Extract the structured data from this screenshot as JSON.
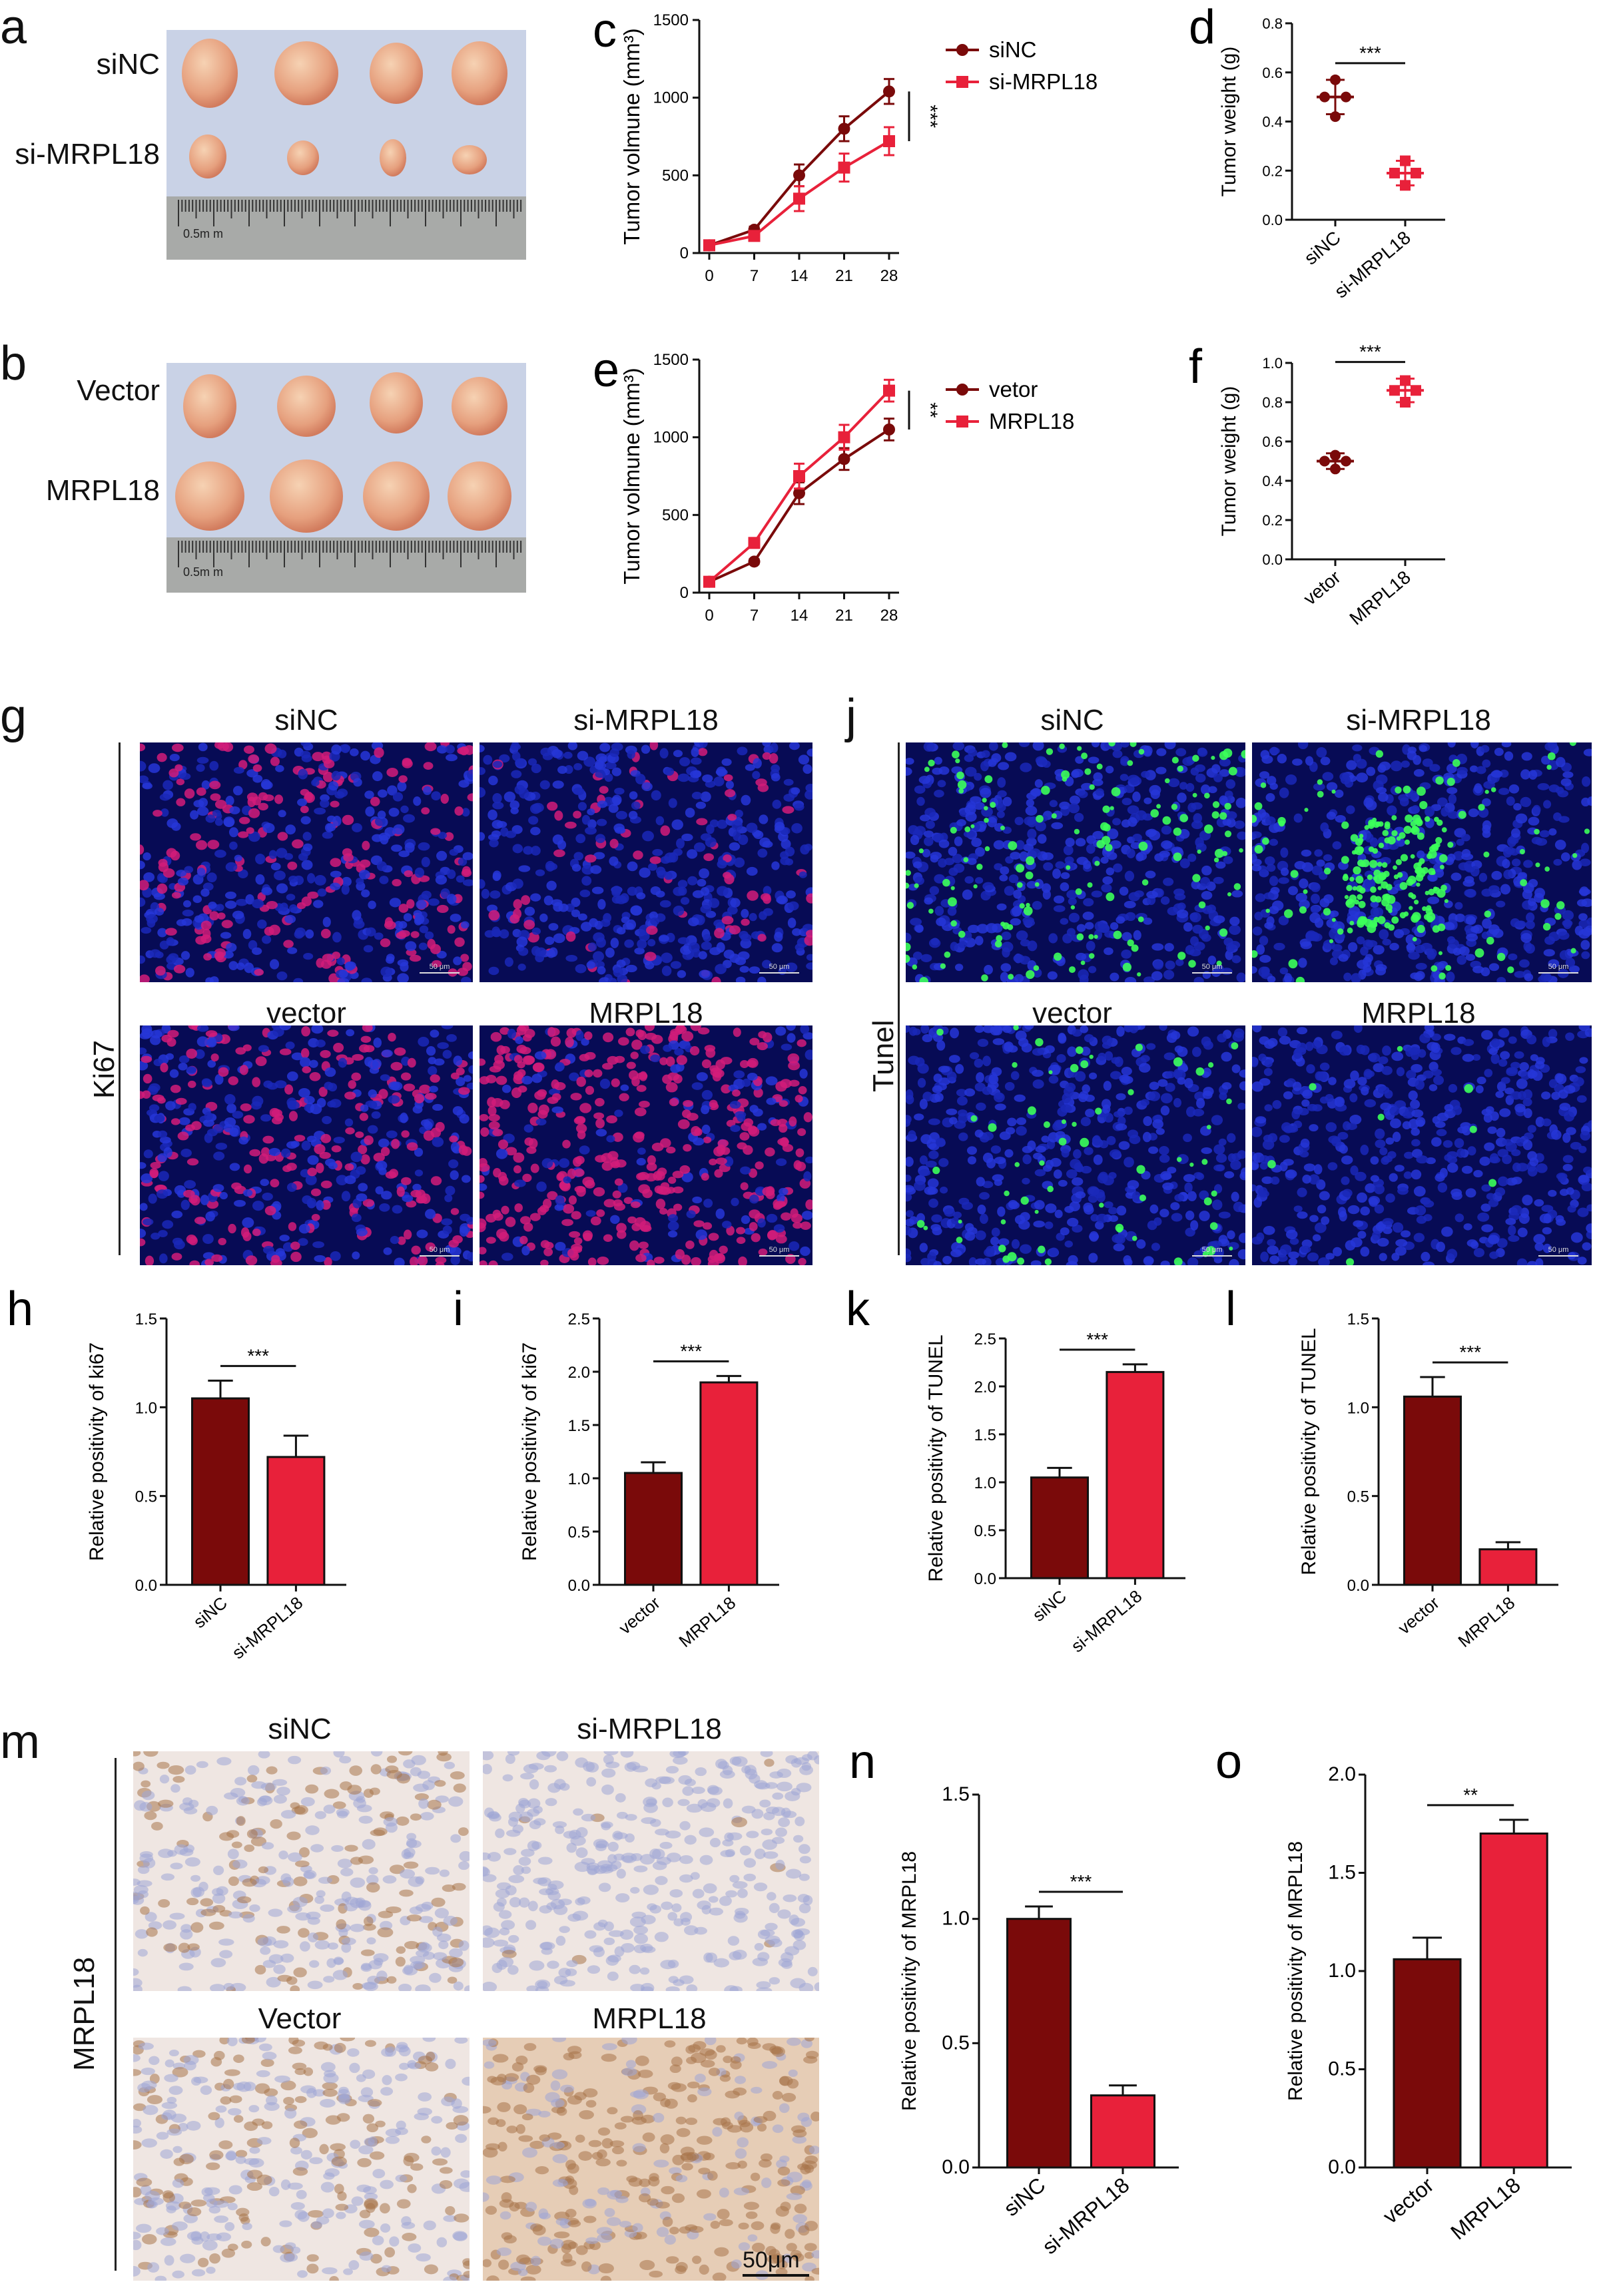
{
  "colors": {
    "dark_red": "#7a0a0a",
    "bright_red": "#e8213a",
    "axis": "#111111"
  },
  "panels": {
    "a": {
      "letter": "a",
      "row_labels": [
        "siNC",
        "si-MRPL18"
      ],
      "scale_text": "0.5m m"
    },
    "b": {
      "letter": "b",
      "row_labels": [
        "Vector",
        "MRPL18"
      ],
      "scale_text": "0.5m m"
    },
    "g": {
      "letter": "g",
      "side_label": "Ki67",
      "col_labels": [
        "siNC",
        "si-MRPL18"
      ],
      "row2_labels": [
        "vector",
        "MRPL18"
      ],
      "scale_text": "50 μm"
    },
    "j": {
      "letter": "j",
      "side_label": "Tunel",
      "col_labels": [
        "siNC",
        "si-MRPL18"
      ],
      "row2_labels": [
        "vector",
        "MRPL18"
      ],
      "scale_text": "50 μm"
    },
    "m": {
      "letter": "m",
      "side_label": "MRPL18",
      "col_labels": [
        "siNC",
        "si-MRPL18"
      ],
      "row2_labels": [
        "Vector",
        "MRPL18"
      ],
      "scale_text": "50μm"
    }
  },
  "chart_data": [
    {
      "id": "c",
      "letter": "c",
      "type": "line",
      "x": [
        0,
        7,
        14,
        21,
        28
      ],
      "ylabel": "Tumor volmune (mm³)",
      "ylim": [
        0,
        1500
      ],
      "yticks": [
        0,
        500,
        1000,
        1500
      ],
      "significance": "***",
      "legend": "top-right",
      "series": [
        {
          "name": "siNC",
          "values": [
            50,
            150,
            500,
            800,
            1040
          ],
          "err": [
            10,
            20,
            70,
            80,
            80
          ],
          "color": "#7a0a0a",
          "marker": "circle"
        },
        {
          "name": "si-MRPL18",
          "values": [
            50,
            110,
            350,
            550,
            720
          ],
          "err": [
            10,
            15,
            80,
            90,
            90
          ],
          "color": "#e8213a",
          "marker": "square"
        }
      ]
    },
    {
      "id": "e",
      "letter": "e",
      "type": "line",
      "x": [
        0,
        7,
        14,
        21,
        28
      ],
      "ylabel": "Tumor volmune (mm³)",
      "ylim": [
        0,
        1500
      ],
      "yticks": [
        0,
        500,
        1000,
        1500
      ],
      "significance": "**",
      "legend": "top-right",
      "series": [
        {
          "name": "vetor",
          "values": [
            70,
            200,
            640,
            860,
            1050
          ],
          "err": [
            10,
            15,
            70,
            70,
            70
          ],
          "color": "#7a0a0a",
          "marker": "circle"
        },
        {
          "name": "MRPL18",
          "values": [
            70,
            320,
            750,
            1000,
            1300
          ],
          "err": [
            10,
            15,
            80,
            80,
            70
          ],
          "color": "#e8213a",
          "marker": "square"
        }
      ]
    },
    {
      "id": "d",
      "letter": "d",
      "type": "scatter",
      "categories": [
        "siNC",
        "si-MRPL18"
      ],
      "ylabel": "Tumor weight (g)",
      "ylim": [
        0,
        0.8
      ],
      "yticks": [
        0.0,
        0.2,
        0.4,
        0.6,
        0.8
      ],
      "significance": "***",
      "groups": [
        {
          "points": [
            0.42,
            0.5,
            0.5,
            0.57
          ],
          "mean": 0.5,
          "sd": 0.07,
          "color": "#7a0a0a"
        },
        {
          "points": [
            0.14,
            0.19,
            0.19,
            0.24
          ],
          "mean": 0.19,
          "sd": 0.05,
          "color": "#e8213a"
        }
      ]
    },
    {
      "id": "f",
      "letter": "f",
      "type": "scatter",
      "categories": [
        "vetor",
        "MRPL18"
      ],
      "ylabel": "Tumor weight (g)",
      "ylim": [
        0,
        1.0
      ],
      "yticks": [
        0.0,
        0.2,
        0.4,
        0.6,
        0.8,
        1.0
      ],
      "significance": "***",
      "groups": [
        {
          "points": [
            0.46,
            0.5,
            0.5,
            0.53
          ],
          "mean": 0.5,
          "sd": 0.04,
          "color": "#7a0a0a"
        },
        {
          "points": [
            0.8,
            0.86,
            0.86,
            0.91
          ],
          "mean": 0.86,
          "sd": 0.06,
          "color": "#e8213a"
        }
      ]
    },
    {
      "id": "h",
      "letter": "h",
      "type": "bar",
      "categories": [
        "siNC",
        "si-MRPL18"
      ],
      "values": [
        1.05,
        0.72
      ],
      "err": [
        0.1,
        0.12
      ],
      "ylabel": "Relative positivity of ki67",
      "ylim": [
        0,
        1.5
      ],
      "yticks": [
        0.0,
        0.5,
        1.0,
        1.5
      ],
      "significance": "***"
    },
    {
      "id": "i",
      "letter": "i",
      "type": "bar",
      "categories": [
        "vector",
        "MRPL18"
      ],
      "values": [
        1.05,
        1.9
      ],
      "err": [
        0.1,
        0.06
      ],
      "ylabel": "Relative positivity of ki67",
      "ylim": [
        0,
        2.5
      ],
      "yticks": [
        0.0,
        0.5,
        1.0,
        1.5,
        2.0,
        2.5
      ],
      "significance": "***"
    },
    {
      "id": "k",
      "letter": "k",
      "type": "bar",
      "categories": [
        "siNC",
        "si-MRPL18"
      ],
      "values": [
        1.05,
        2.15
      ],
      "err": [
        0.1,
        0.08
      ],
      "ylabel": "Relative positivity of TUNEL",
      "ylim": [
        0,
        2.5
      ],
      "yticks": [
        0.0,
        0.5,
        1.0,
        1.5,
        2.0,
        2.5
      ],
      "significance": "***"
    },
    {
      "id": "l",
      "letter": "l",
      "type": "bar",
      "categories": [
        "vector",
        "MRPL18"
      ],
      "values": [
        1.06,
        0.2
      ],
      "err": [
        0.11,
        0.04
      ],
      "ylabel": "Relative positivity of TUNEL",
      "ylim": [
        0,
        1.5
      ],
      "yticks": [
        0.0,
        0.5,
        1.0,
        1.5
      ],
      "significance": "***"
    },
    {
      "id": "n",
      "letter": "n",
      "type": "bar",
      "categories": [
        "siNC",
        "si-MRPL18"
      ],
      "values": [
        1.0,
        0.29
      ],
      "err": [
        0.05,
        0.04
      ],
      "ylabel": "Relative positivity of MRPL18",
      "ylim": [
        0,
        1.5
      ],
      "yticks": [
        0.0,
        0.5,
        1.0,
        1.5
      ],
      "significance": "***"
    },
    {
      "id": "o",
      "letter": "o",
      "type": "bar",
      "categories": [
        "vector",
        "MRPL18"
      ],
      "values": [
        1.06,
        1.7
      ],
      "err": [
        0.11,
        0.07
      ],
      "ylabel": "Relative positivity of MRPL18",
      "ylim": [
        0,
        2.0
      ],
      "yticks": [
        0.0,
        0.5,
        1.0,
        1.5,
        2.0
      ],
      "significance": "**"
    }
  ]
}
